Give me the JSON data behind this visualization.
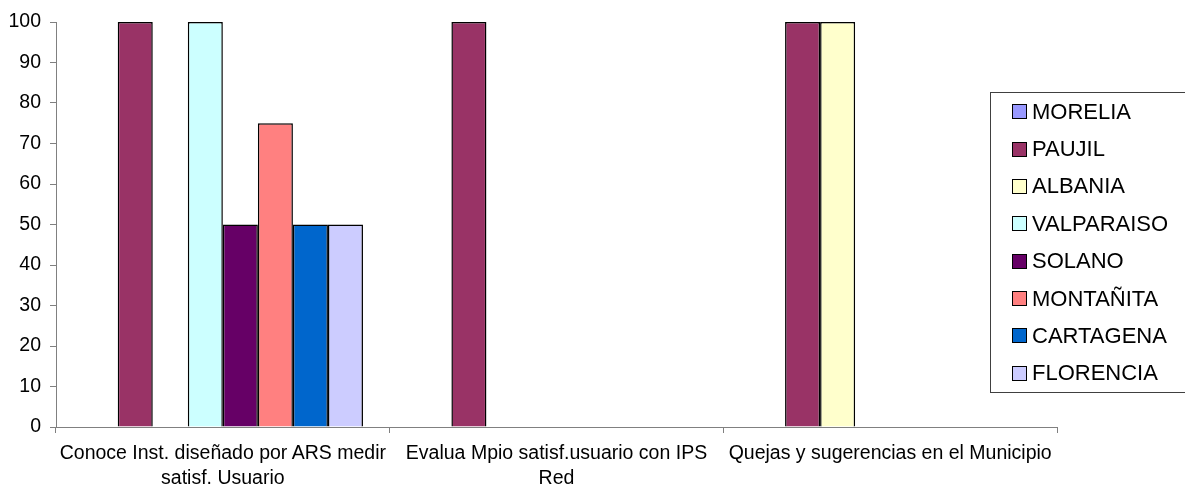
{
  "chart_data": {
    "type": "bar",
    "categories": [
      "Conoce Inst. diseñado por ARS medir satisf. Usuario",
      "Evalua Mpio satisf.usuario con IPS Red",
      "Quejas y sugerencias en el Municipio"
    ],
    "series": [
      {
        "name": "MORELIA",
        "color": "#9999ff",
        "values": [
          0,
          0,
          0
        ]
      },
      {
        "name": "PAUJIL",
        "color": "#993366",
        "values": [
          100,
          100,
          100
        ]
      },
      {
        "name": "ALBANIA",
        "color": "#ffffcc",
        "values": [
          0,
          0,
          100
        ]
      },
      {
        "name": "VALPARAISO",
        "color": "#ccffff",
        "values": [
          100,
          0,
          0
        ]
      },
      {
        "name": "SOLANO",
        "color": "#660066",
        "values": [
          50,
          0,
          0
        ]
      },
      {
        "name": "MONTAÑITA",
        "color": "#ff8080",
        "values": [
          75,
          0,
          0
        ]
      },
      {
        "name": "CARTAGENA",
        "color": "#0066cc",
        "values": [
          50,
          0,
          0
        ]
      },
      {
        "name": "FLORENCIA",
        "color": "#ccccff",
        "values": [
          50,
          0,
          0
        ]
      }
    ],
    "ylim": [
      0,
      100
    ],
    "yticks": [
      0,
      10,
      20,
      30,
      40,
      50,
      60,
      70,
      80,
      90,
      100
    ],
    "grid": false,
    "legend": "right"
  }
}
